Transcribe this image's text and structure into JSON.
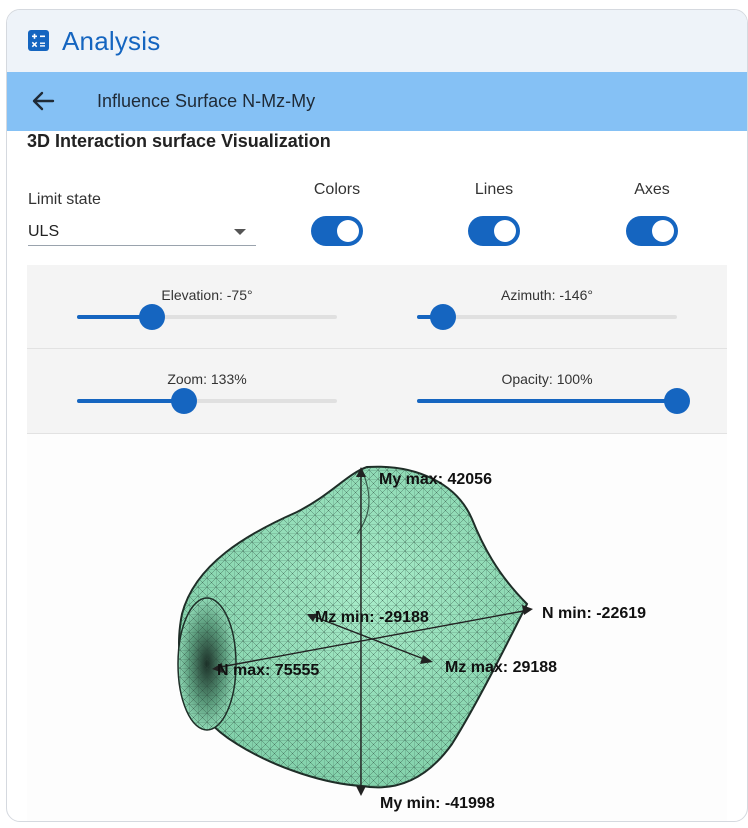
{
  "app": {
    "title": "Analysis",
    "icon": "calculator-icon"
  },
  "toolbar": {
    "back_icon": "arrow-left-icon",
    "title": "Influence Surface N-Mz-My"
  },
  "section": {
    "title": "3D Interaction surface Visualization"
  },
  "controls": {
    "limit_state": {
      "label": "Limit state",
      "value": "ULS"
    },
    "toggles": [
      {
        "label": "Colors",
        "on": true
      },
      {
        "label": "Lines",
        "on": true
      },
      {
        "label": "Axes",
        "on": true
      }
    ]
  },
  "sliders": [
    {
      "label": "Elevation: -75°",
      "level": 0.29
    },
    {
      "label": "Azimuth: -146°",
      "level": 0.1
    },
    {
      "label": "Zoom: 133%",
      "level": 0.41
    },
    {
      "label": "Opacity: 100%",
      "level": 1.0
    }
  ],
  "visualization": {
    "surface_color": "#8fdcb8",
    "mesh_color": "#2c4a3c",
    "axis_labels": {
      "my_max": "My max: 42056",
      "my_min": "My min: -41998",
      "n_min": "N min: -22619",
      "n_max": "N max: 75555",
      "mz_min": "Mz min: -29188",
      "mz_max": "Mz max: 29188"
    }
  },
  "colors": {
    "accent": "#1565c0",
    "toolbar": "#85c1f5",
    "header": "#eef3f9"
  }
}
